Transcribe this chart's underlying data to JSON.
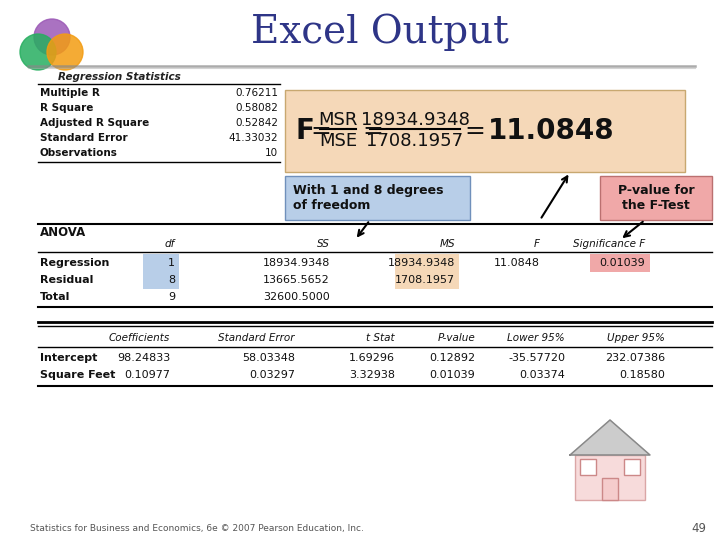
{
  "title": "Excel Output",
  "title_color": "#2E3587",
  "title_fontsize": 28,
  "background_color": "#FFFFFF",
  "reg_stats_label": "Regression Statistics",
  "reg_stats_rows": [
    [
      "Multiple R",
      "0.76211"
    ],
    [
      "R Square",
      "0.58082"
    ],
    [
      "Adjusted R Square",
      "0.52842"
    ],
    [
      "Standard Error",
      "41.33032"
    ],
    [
      "Observations",
      "10"
    ]
  ],
  "anova_label": "ANOVA",
  "anova_header": [
    "",
    "df",
    "SS",
    "MS",
    "F",
    "Significance F"
  ],
  "anova_rows": [
    [
      "Regression",
      "1",
      "18934.9348",
      "18934.9348",
      "11.0848",
      "0.01039"
    ],
    [
      "Residual",
      "8",
      "13665.5652",
      "1708.1957",
      "",
      ""
    ],
    [
      "Total",
      "9",
      "32600.5000",
      "",
      "",
      ""
    ]
  ],
  "coeff_header": [
    "",
    "Coefficients",
    "Standard Error",
    "t Stat",
    "P-value",
    "Lower 95%",
    "Upper 95%"
  ],
  "coeff_rows": [
    [
      "Intercept",
      "98.24833",
      "58.03348",
      "1.69296",
      "0.12892",
      "-35.57720",
      "232.07386"
    ],
    [
      "Square Feet",
      "0.10977",
      "0.03297",
      "3.32938",
      "0.01039",
      "0.03374",
      "0.18580"
    ]
  ],
  "callout1_text": "With 1 and 8 degrees\nof freedom",
  "callout2_text": "P-value for\nthe F-Test",
  "footer_text": "Statistics for Business and Economics, 6e © 2007 Pearson Education, Inc.",
  "page_num": "49",
  "formula_bg": "#F5D8B8",
  "callout1_bg": "#B8CEE8",
  "callout2_bg": "#F0A8A8",
  "df_cell_bg": "#B8CEE8",
  "ms_cell_bg": "#F5D8B8",
  "sig_cell_bg": "#F0A8A8"
}
